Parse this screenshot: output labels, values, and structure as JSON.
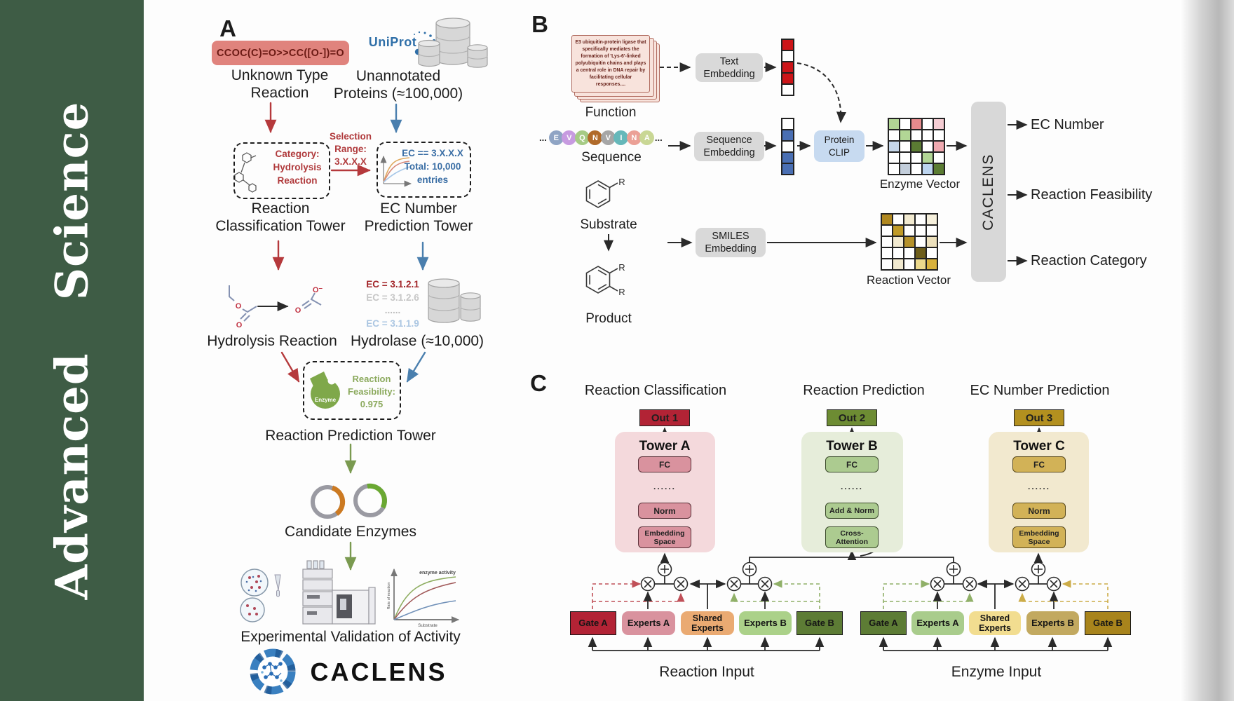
{
  "journal": {
    "title": "Advanced Science"
  },
  "colors": {
    "sidebar_green": "#3e5c45",
    "red_accent": "#b5393c",
    "blue_accent": "#4a7fae",
    "olive_accent": "#7a9a50",
    "smiles_box": "#e0837d",
    "caclens_block_gray": "#d8d8d8"
  },
  "panelA": {
    "label": "A",
    "smiles": "CCOC(C)=O>>CC([O-])=O",
    "unknown_reaction": [
      "Unknown Type",
      "Reaction"
    ],
    "uniprot": "UniProt",
    "unannotated": [
      "Unannotated",
      "Proteins (≈100,000)"
    ],
    "classification_box": [
      "Category:",
      "Hydrolysis",
      "Reaction"
    ],
    "selection_range": [
      "Selection",
      "Range:",
      "3.X.X.X"
    ],
    "ec_box": [
      "EC == 3.X.X.X",
      "Total: 10,000",
      "entries"
    ],
    "tower1": [
      "Reaction",
      "Classification Tower"
    ],
    "tower2": [
      "EC Number",
      "Prediction Tower"
    ],
    "ec_list": [
      "EC = 3.1.2.1",
      "EC = 3.1.2.6",
      "......",
      "EC = 3.1.1.9"
    ],
    "hydrolysis_label": "Hydrolysis Reaction",
    "hydrolase_label": "Hydrolase (≈10,000)",
    "enzyme_blob_label": "Enzyme",
    "feasibility": [
      "Reaction",
      "Feasibility:",
      "0.975"
    ],
    "tower3": "Reaction Prediction Tower",
    "candidate_label": "Candidate Enzymes",
    "validation_label": "Experimental Validation of Activity",
    "brand": "CACLENS",
    "activity_plot": {
      "series_label": "enzyme activity",
      "ylabel": "Rate of reaction",
      "xlabel": "Substrate"
    }
  },
  "panelB": {
    "label": "B",
    "function_card_text": "E3 ubiquitin-protein ligase that specifically mediates the formation of 'Lys-6'-linked polyubiquitin chains and plays a central role in DNA repair by facilitating cellular responses....",
    "function_label": "Function",
    "sequence_label": "Sequence",
    "substrate_label": "Substrate",
    "product_label": "Product",
    "r_group": "R",
    "ellipsis": "...",
    "sequence_tokens": [
      {
        "t": "E",
        "c": "#8fa4c4"
      },
      {
        "t": "V",
        "c": "#c79be0"
      },
      {
        "t": "Q",
        "c": "#a6cb85"
      },
      {
        "t": "N",
        "c": "#b06a2a"
      },
      {
        "t": "V",
        "c": "#a6a6a6"
      },
      {
        "t": "I",
        "c": "#66b8ba"
      },
      {
        "t": "N",
        "c": "#eba096"
      },
      {
        "t": "A",
        "c": "#c9d795"
      }
    ],
    "text_embedding": [
      "Text",
      "Embedding"
    ],
    "sequence_embedding": [
      "Sequence",
      "Embedding"
    ],
    "smiles_embedding": [
      "SMILES",
      "Embedding"
    ],
    "protein_clip": [
      "Protein",
      "CLIP"
    ],
    "enzyme_vector_label": "Enzyme Vector",
    "reaction_vector_label": "Reaction Vector",
    "caclens_label": "CACLENS",
    "outputs": [
      "EC Number",
      "Reaction Feasibility",
      "Reaction Category"
    ],
    "text_vector": [
      "#cc1418",
      "#ffffff",
      "#cc1418",
      "#cc1418",
      "#ffffff"
    ],
    "seq_vector": [
      "#ffffff",
      "#4a6fb3",
      "#ffffff",
      "#4a6fb3",
      "#4a6fb3"
    ],
    "enzyme_vector_grid": [
      [
        "#b2d695",
        "#ffffff",
        "#e58b8d",
        "#ffffff",
        "#f5cdd3"
      ],
      [
        "#ffffff",
        "#b2d695",
        "#ffffff",
        "#ffffff",
        "#ffffff"
      ],
      [
        "#c6d7ea",
        "#ffffff",
        "#5b7c33",
        "#ffffff",
        "#efa9b0"
      ],
      [
        "#ffffff",
        "#ffffff",
        "#ffffff",
        "#b2d695",
        "#ffffff"
      ],
      [
        "#ffffff",
        "#c3cedb",
        "#ffffff",
        "#bcd4ee",
        "#5b7c33"
      ]
    ],
    "reaction_vector_grid": [
      [
        "#b08820",
        "#ffffff",
        "#f2ead0",
        "#ffffff",
        "#f6f0dc"
      ],
      [
        "#ffffff",
        "#bf9a28",
        "#ffffff",
        "#ffffff",
        "#ffffff"
      ],
      [
        "#ffffff",
        "#f2ead0",
        "#b5912a",
        "#ffffff",
        "#ece0bc"
      ],
      [
        "#ffffff",
        "#ffffff",
        "#ffffff",
        "#6e5e1a",
        "#ffffff"
      ],
      [
        "#ffffff",
        "#f2ead0",
        "#ffffff",
        "#ecd98c",
        "#d9b23c"
      ]
    ]
  },
  "panelC": {
    "label": "C",
    "headers": [
      "Reaction Classification",
      "Reaction Prediction",
      "EC Number Prediction"
    ],
    "outs": [
      {
        "label": "Out 1",
        "color": "#b22335"
      },
      {
        "label": "Out 2",
        "color": "#6d8c33"
      },
      {
        "label": "Out 3",
        "color": "#b3901f"
      }
    ],
    "towers": {
      "a": {
        "title": "Tower A",
        "fc": "FC",
        "dots": "......",
        "norm": "Norm",
        "embed": [
          "Embedding",
          "Space"
        ]
      },
      "b": {
        "title": "Tower B",
        "fc": "FC",
        "dots": "......",
        "norm": "Add & Norm",
        "attn": [
          "Cross-",
          "Attention"
        ]
      },
      "c": {
        "title": "Tower C",
        "fc": "FC",
        "dots": "......",
        "norm": "Norm",
        "embed": [
          "Embedding",
          "Space"
        ]
      }
    },
    "moe_reaction": [
      {
        "label": "Gate A",
        "color": "#b22335"
      },
      {
        "label": "Experts A",
        "color": "#d9929e"
      },
      {
        "label": "Shared Experts",
        "color": "#eaaa72"
      },
      {
        "label": "Experts B",
        "color": "#abd189"
      },
      {
        "label": "Gate B",
        "color": "#5d7c35"
      }
    ],
    "moe_enzyme": [
      {
        "label": "Gate A",
        "color": "#5d7c35"
      },
      {
        "label": "Experts A",
        "color": "#a9cc8c"
      },
      {
        "label": "Shared Experts",
        "color": "#f2dd90"
      },
      {
        "label": "Experts B",
        "color": "#c2a960"
      },
      {
        "label": "Gate B",
        "color": "#a8841c"
      }
    ],
    "reaction_input_label": "Reaction Input",
    "enzyme_input_label": "Enzyme Input"
  }
}
